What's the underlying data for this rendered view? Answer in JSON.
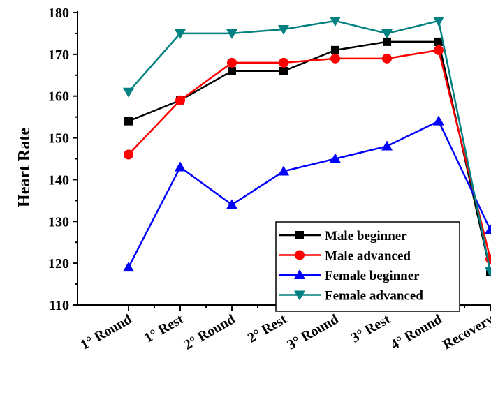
{
  "chart_data": {
    "type": "line",
    "title": "",
    "xlabel": "",
    "ylabel": "Heart Rate",
    "ylim": [
      110,
      180
    ],
    "yticks": [
      110,
      120,
      130,
      140,
      150,
      160,
      170,
      180
    ],
    "categories": [
      "1° Round",
      "1° Rest",
      "2° Round",
      "2° Rest",
      "3° Round",
      "3° Rest",
      "4° Round",
      "Recovery"
    ],
    "grid": false,
    "legend_position": "bottom-right",
    "series": [
      {
        "name": "Male beginner",
        "color": "#000000",
        "marker": "square",
        "values": [
          154,
          159,
          166,
          166,
          171,
          173,
          173,
          118
        ]
      },
      {
        "name": "Male advanced",
        "color": "#ff0000",
        "marker": "circle",
        "values": [
          146,
          159,
          168,
          168,
          169,
          169,
          171,
          121
        ]
      },
      {
        "name": "Female beginner",
        "color": "#0000ff",
        "marker": "triangle-up",
        "values": [
          119,
          143,
          134,
          142,
          145,
          148,
          154,
          128
        ]
      },
      {
        "name": "Female advanced",
        "color": "#008080",
        "marker": "triangle-down",
        "values": [
          161,
          175,
          175,
          176,
          178,
          175,
          178,
          118
        ]
      }
    ]
  }
}
